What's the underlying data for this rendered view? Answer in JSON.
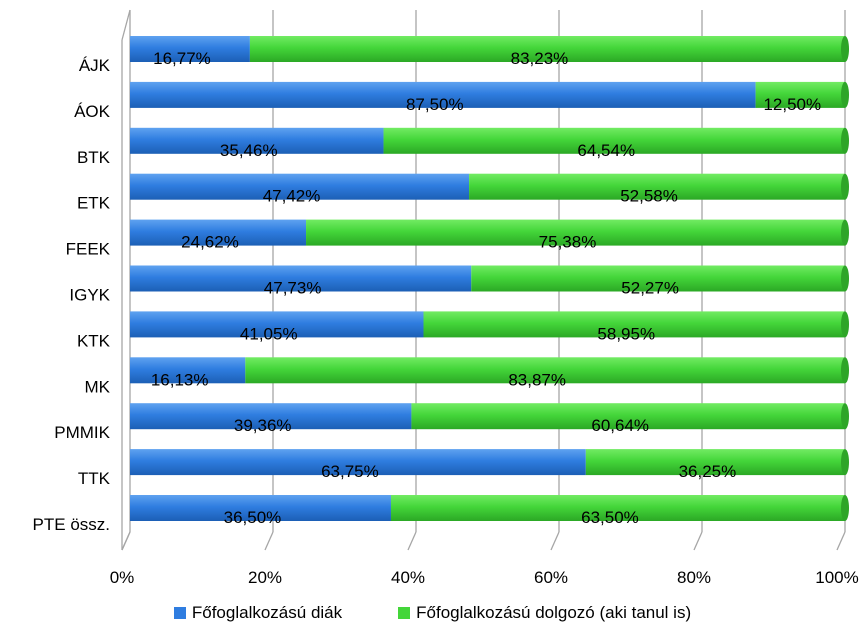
{
  "chart_data": {
    "type": "bar",
    "orientation": "horizontal",
    "stacked": "percent",
    "categories": [
      "ÁJK",
      "ÁOK",
      "BTK",
      "ETK",
      "FEEK",
      "IGYK",
      "KTK",
      "MK",
      "PMMIK",
      "TTK",
      "PTE össz."
    ],
    "series": [
      {
        "name": "Főfoglalkozású diák",
        "color": "#2F7DE0",
        "values": [
          16.77,
          87.5,
          35.46,
          47.42,
          24.62,
          47.73,
          41.05,
          16.13,
          39.36,
          63.75,
          36.5
        ],
        "labels": [
          "16,77%",
          "87,50%",
          "35,46%",
          "47,42%",
          "24,62%",
          "47,73%",
          "41,05%",
          "16,13%",
          "39,36%",
          "63,75%",
          "36,50%"
        ]
      },
      {
        "name": "Főfoglalkozású dolgozó (aki tanul is)",
        "color": "#44D63A",
        "values": [
          83.23,
          12.5,
          64.54,
          52.58,
          75.38,
          52.27,
          58.95,
          83.87,
          60.64,
          36.25,
          63.5
        ],
        "labels": [
          "83,23%",
          "12,50%",
          "64,54%",
          "52,58%",
          "75,38%",
          "52,27%",
          "58,95%",
          "83,87%",
          "60,64%",
          "36,25%",
          "63,50%"
        ]
      }
    ],
    "x_ticks": [
      "0%",
      "20%",
      "40%",
      "60%",
      "80%",
      "100%"
    ],
    "xlim": [
      0,
      100
    ],
    "grid": true,
    "legend_position": "bottom",
    "title": "",
    "xlabel": "",
    "ylabel": ""
  }
}
